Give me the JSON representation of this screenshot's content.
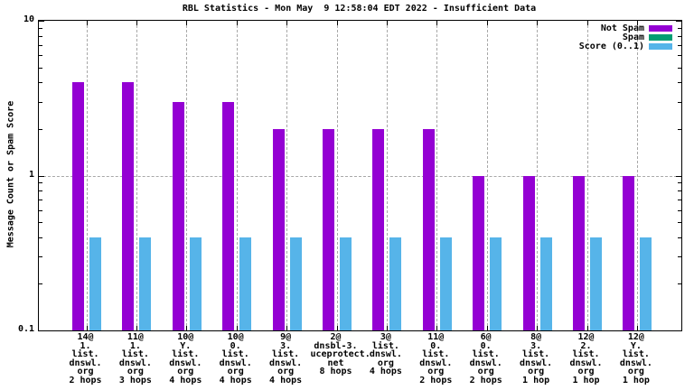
{
  "title": "RBL Statistics - Mon May  9 12:58:04 EDT 2022 - Insufficient Data",
  "ylabel": "Message Count or Spam Score",
  "chart_data": {
    "type": "bar",
    "title": "RBL Statistics - Mon May  9 12:58:04 EDT 2022 - Insufficient Data",
    "xlabel": "",
    "ylabel": "Message Count or Spam Score",
    "y_scale": "log",
    "ylim": [
      0.1,
      10
    ],
    "yticks": [
      {
        "value": 0.1,
        "label": "0.1"
      },
      {
        "value": 1,
        "label": "1"
      },
      {
        "value": 10,
        "label": "10"
      }
    ],
    "grid": {
      "horizontal_at_values": [
        1
      ],
      "vertical_at_each_category": true
    },
    "legend_position": "top-right-inside",
    "categories": [
      {
        "lines": [
          "14@",
          "1.",
          "list.",
          "dnswl.",
          "org",
          "2 hops"
        ]
      },
      {
        "lines": [
          "11@",
          "1.",
          "list.",
          "dnswl.",
          "org",
          "3 hops"
        ]
      },
      {
        "lines": [
          "10@",
          "Y.",
          "list.",
          "dnswl.",
          "org",
          "4 hops"
        ]
      },
      {
        "lines": [
          "10@",
          "0.",
          "list.",
          "dnswl.",
          "org",
          "4 hops"
        ]
      },
      {
        "lines": [
          "9@",
          "3.",
          "list.",
          "dnswl.",
          "org",
          "4 hops"
        ]
      },
      {
        "lines": [
          "2@",
          "dnsbl-3.",
          "uceprotect.",
          "net",
          "8 hops"
        ]
      },
      {
        "lines": [
          "3@",
          "list.",
          "dnswl.",
          "org",
          "4 hops"
        ]
      },
      {
        "lines": [
          "11@",
          "0.",
          "list.",
          "dnswl.",
          "org",
          "2 hops"
        ]
      },
      {
        "lines": [
          "6@",
          "0.",
          "list.",
          "dnswl.",
          "org",
          "2 hops"
        ]
      },
      {
        "lines": [
          "8@",
          "3.",
          "list.",
          "dnswl.",
          "org",
          "1 hop"
        ]
      },
      {
        "lines": [
          "12@",
          "2.",
          "list.",
          "dnswl.",
          "org",
          "1 hop"
        ]
      },
      {
        "lines": [
          "12@",
          "Y.",
          "list.",
          "dnswl.",
          "org",
          "1 hop"
        ]
      }
    ],
    "series": [
      {
        "name": "Not Spam",
        "color": "#9400d3",
        "values": [
          4,
          4,
          3,
          3,
          2,
          2,
          2,
          2,
          1,
          1,
          1,
          1
        ]
      },
      {
        "name": "Spam",
        "color": "#009e73",
        "values": [
          0,
          0,
          0,
          0,
          0,
          0,
          0,
          0,
          0,
          0,
          0,
          0
        ]
      },
      {
        "name": "Score (0..1)",
        "color": "#56b4e9",
        "values": [
          0.4,
          0.4,
          0.4,
          0.4,
          0.4,
          0.4,
          0.4,
          0.4,
          0.4,
          0.4,
          0.4,
          0.4
        ]
      }
    ]
  }
}
